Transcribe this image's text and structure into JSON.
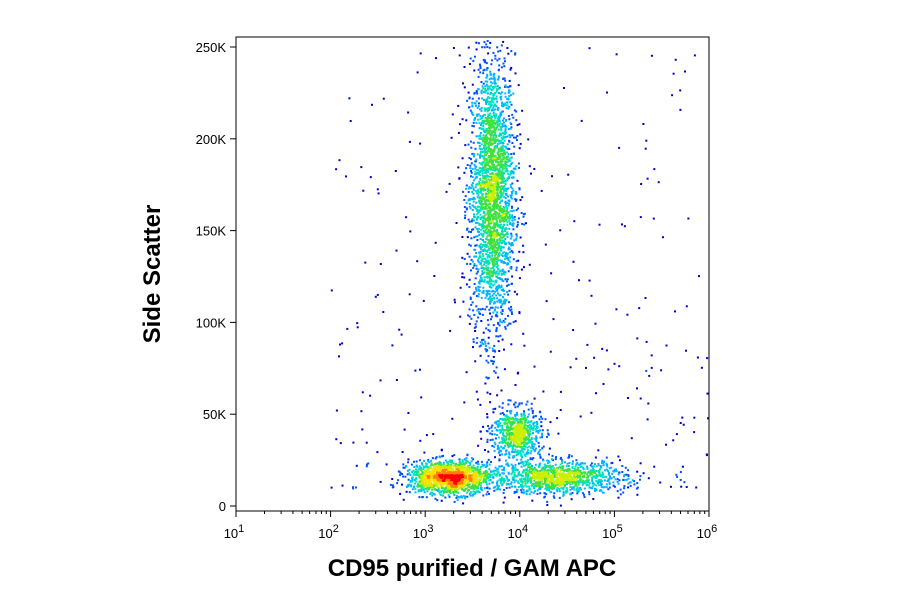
{
  "chart_data": {
    "type": "scatter",
    "style": "density dot plot (flow cytometry)",
    "xlabel": "CD95 purified / GAM APC",
    "ylabel": "Side Scatter",
    "x_scale": "log",
    "xlim": [
      10,
      1000000
    ],
    "ylim": [
      0,
      256000
    ],
    "x_ticks": [
      {
        "value": 10,
        "base": "10",
        "exp": "1"
      },
      {
        "value": 100,
        "base": "10",
        "exp": "2"
      },
      {
        "value": 1000,
        "base": "10",
        "exp": "3"
      },
      {
        "value": 10000,
        "base": "10",
        "exp": "4"
      },
      {
        "value": 100000,
        "base": "10",
        "exp": "5"
      },
      {
        "value": 1000000,
        "base": "10",
        "exp": "6"
      }
    ],
    "y_ticks": [
      {
        "value": 0,
        "label": "0"
      },
      {
        "value": 50000,
        "label": "50K"
      },
      {
        "value": 100000,
        "label": "100K"
      },
      {
        "value": 150000,
        "label": "150K"
      },
      {
        "value": 200000,
        "label": "200K"
      },
      {
        "value": 250000,
        "label": "250K"
      }
    ],
    "grid": false,
    "legend": "none",
    "density_colors": [
      "#0000cc",
      "#0050ff",
      "#00b4ff",
      "#00e0c0",
      "#40e040",
      "#c8f000",
      "#ffe000",
      "#ff8000",
      "#ff0000"
    ],
    "populations": [
      {
        "x_center": 5000,
        "y_center": 170000,
        "x_spread_decades": 0.12,
        "y_spread": 38000,
        "count": 2600
      },
      {
        "x_center": 1800,
        "y_center": 16000,
        "x_spread_decades": 0.22,
        "y_spread": 4500,
        "count": 1500
      },
      {
        "x_center": 25000,
        "y_center": 16000,
        "x_spread_decades": 0.35,
        "y_spread": 4500,
        "count": 1100
      },
      {
        "x_center": 9000,
        "y_center": 40000,
        "x_spread_decades": 0.13,
        "y_spread": 7000,
        "count": 650
      }
    ]
  }
}
